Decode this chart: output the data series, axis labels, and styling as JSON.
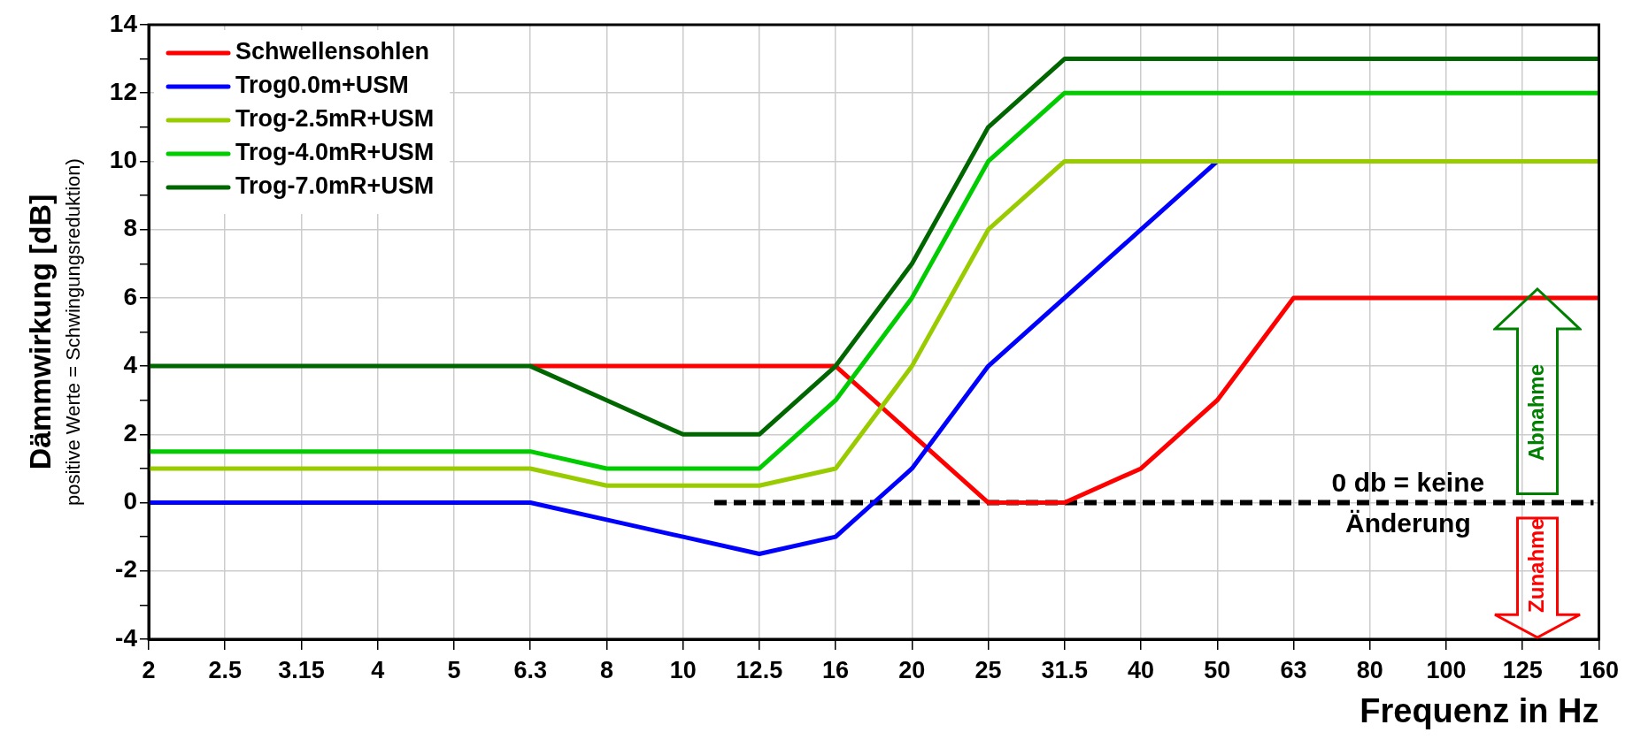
{
  "chart_data": {
    "type": "line",
    "xlabel": "Frequenz in Hz",
    "ylabel": "Dämmwirkung [dB]",
    "categories": [
      "2",
      "2.5",
      "3.15",
      "4",
      "5",
      "6.3",
      "8",
      "10",
      "12.5",
      "16",
      "20",
      "25",
      "31.5",
      "40",
      "50",
      "63",
      "80",
      "100",
      "125",
      "160"
    ],
    "series": [
      {
        "name": "Schwellensohlen",
        "color": "#ff0000",
        "values": [
          null,
          null,
          null,
          null,
          null,
          4,
          4,
          4,
          4,
          4,
          2,
          0,
          0,
          1,
          3,
          6,
          6,
          6,
          6,
          6
        ]
      },
      {
        "name": "Trog0.0m+USM",
        "color": "#0000ff",
        "values": [
          0,
          0,
          0,
          0,
          0,
          0,
          -0.5,
          -1,
          -1.5,
          -1,
          1,
          4,
          6,
          8,
          10,
          null,
          null,
          null,
          null,
          null
        ]
      },
      {
        "name": "Trog-2.5mR+USM",
        "color": "#99cc00",
        "values": [
          1,
          1,
          1,
          1,
          1,
          1,
          0.5,
          0.5,
          0.5,
          1,
          4,
          8,
          10,
          10,
          10,
          10,
          10,
          10,
          10,
          10
        ]
      },
      {
        "name": "Trog-4.0mR+USM",
        "color": "#00cc00",
        "values": [
          1.5,
          1.5,
          1.5,
          1.5,
          1.5,
          1.5,
          1,
          1,
          1,
          3,
          6,
          10,
          12,
          12,
          12,
          12,
          12,
          12,
          12,
          12
        ]
      },
      {
        "name": "Trog-7.0mR+USM",
        "color": "#006600",
        "values": [
          4,
          4,
          4,
          4,
          4,
          4,
          3,
          2,
          2,
          4,
          7,
          11,
          13,
          13,
          13,
          13,
          13,
          13,
          13,
          13
        ]
      }
    ],
    "ylim": [
      -4,
      14
    ],
    "yticks": [
      -4,
      {
        "value": -3,
        "label": null
      },
      -2,
      {
        "value": -1,
        "label": null
      },
      0,
      {
        "value": 1,
        "label": null
      },
      2,
      {
        "value": 3,
        "label": null
      },
      4,
      {
        "value": 5,
        "label": null
      },
      6,
      {
        "value": 7,
        "label": null
      },
      8,
      {
        "value": 9,
        "label": null
      },
      10,
      {
        "value": 11,
        "label": null
      },
      12,
      {
        "value": 13,
        "label": null
      },
      14
    ],
    "ref_lines": [
      {
        "axis": "y",
        "value": 0,
        "label": "0 db = keine Änderung",
        "color": "#000000",
        "line_style": "dashed"
      }
    ],
    "annotations": [
      "positive Werte = Schwingungsreduktion)",
      "Abnahme",
      "Zunahme"
    ],
    "grid": true,
    "legend": "top left",
    "marker": "none",
    "line_style": "solid"
  }
}
